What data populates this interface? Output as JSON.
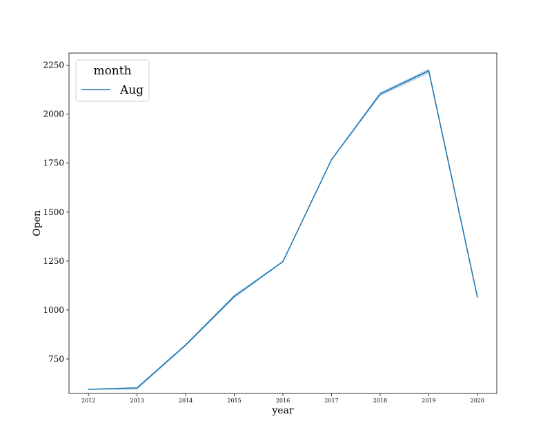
{
  "chart_data": {
    "type": "line",
    "title": "",
    "xlabel": "year",
    "ylabel": "Open",
    "x": [
      "2012",
      "2013",
      "2014",
      "2015",
      "2016",
      "2017",
      "2018",
      "2019",
      "2020"
    ],
    "xlim": [
      2011.6,
      2020.4
    ],
    "ylim": [
      574,
      2312
    ],
    "yticks": [
      "750",
      "1000",
      "1250",
      "1500",
      "1750",
      "2000",
      "2250"
    ],
    "grid": false,
    "legend": {
      "title": "month",
      "placement": "top-left"
    },
    "colors": {
      "line": "#1f77b4",
      "band": "#a6c8e6"
    },
    "series": [
      {
        "name": "Aug",
        "values": [
          595,
          602,
          822,
          1070,
          1247,
          1768,
          2103,
          2222,
          1067
        ],
        "ci_low": [
          593,
          593,
          815,
          1060,
          1244,
          1764,
          2092,
          2208,
          1055
        ],
        "ci_high": [
          598,
          607,
          826,
          1078,
          1250,
          1772,
          2112,
          2232,
          1075
        ]
      }
    ]
  }
}
